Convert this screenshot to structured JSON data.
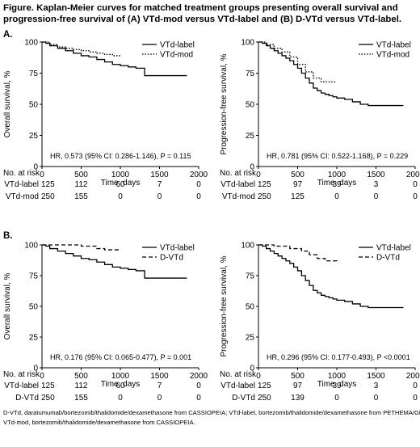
{
  "figure": {
    "title": "Figure. Kaplan-Meier curves for matched treatment groups presenting overall survival and progression-free survival of (A) VTd-mod versus VTd-label and (B) D-VTd versus VTd-label.",
    "footnotes": [
      "D-VTd, daratumumab/bortezomib/thalidomide/dexamethasone from CASSIOPEIA; VTd-label, bortezomib/thalidomide/dexamethasone from PETHEMA/GEM;",
      "VTd-mod, bortezomib/thalidomide/dexamethasone from CASSIOPEIA."
    ]
  },
  "panels": [
    {
      "label": "A."
    },
    {
      "label": "B."
    }
  ],
  "risk_header": "No. at risk",
  "chart_data": [
    {
      "type": "line",
      "title": "",
      "xlabel": "Time, days",
      "ylabel": "Overall survival, %",
      "xlim": [
        0,
        2000
      ],
      "ylim": [
        0,
        100
      ],
      "xticks": [
        0,
        500,
        1000,
        1500,
        2000
      ],
      "yticks": [
        0,
        25,
        50,
        75,
        100
      ],
      "legend_position": "top-right",
      "annotation": "HR, 0.573 (95% CI: 0.286-1.146), P = 0.115",
      "series": [
        {
          "name": "VTd-label",
          "style": "solid",
          "points": [
            [
              0,
              100
            ],
            [
              50,
              99
            ],
            [
              100,
              97
            ],
            [
              200,
              95
            ],
            [
              300,
              93
            ],
            [
              400,
              91
            ],
            [
              500,
              89
            ],
            [
              600,
              88
            ],
            [
              700,
              86
            ],
            [
              800,
              84
            ],
            [
              900,
              82
            ],
            [
              1000,
              81
            ],
            [
              1100,
              80
            ],
            [
              1200,
              79
            ],
            [
              1300,
              79
            ],
            [
              1310,
              73
            ],
            [
              1850,
              73
            ]
          ]
        },
        {
          "name": "VTd-mod",
          "style": "dotted",
          "points": [
            [
              0,
              100
            ],
            [
              100,
              98
            ],
            [
              200,
              96
            ],
            [
              300,
              95
            ],
            [
              400,
              94
            ],
            [
              500,
              93
            ],
            [
              600,
              92
            ],
            [
              700,
              91
            ],
            [
              800,
              90
            ],
            [
              900,
              89
            ],
            [
              1000,
              89
            ]
          ]
        }
      ],
      "risk_table": [
        {
          "name": "VTd-label",
          "values": [
            "125",
            "112",
            "60",
            "7",
            "0"
          ]
        },
        {
          "name": "VTd-mod",
          "values": [
            "250",
            "155",
            "0",
            "0",
            "0"
          ]
        }
      ]
    },
    {
      "type": "line",
      "title": "",
      "xlabel": "Time, days",
      "ylabel": "Progression-free survival, %",
      "xlim": [
        0,
        2000
      ],
      "ylim": [
        0,
        100
      ],
      "xticks": [
        0,
        500,
        1000,
        1500,
        2000
      ],
      "yticks": [
        0,
        25,
        50,
        75,
        100
      ],
      "legend_position": "top-right",
      "annotation": "HR, 0.781 (95% CI: 0.522-1.168), P = 0.229",
      "series": [
        {
          "name": "VTd-label",
          "style": "solid",
          "points": [
            [
              0,
              100
            ],
            [
              50,
              99
            ],
            [
              100,
              97
            ],
            [
              150,
              95
            ],
            [
              200,
              93
            ],
            [
              250,
              91
            ],
            [
              300,
              89
            ],
            [
              350,
              87
            ],
            [
              400,
              85
            ],
            [
              450,
              82
            ],
            [
              500,
              79
            ],
            [
              550,
              75
            ],
            [
              600,
              71
            ],
            [
              650,
              67
            ],
            [
              700,
              63
            ],
            [
              750,
              61
            ],
            [
              800,
              59
            ],
            [
              850,
              58
            ],
            [
              900,
              57
            ],
            [
              950,
              56
            ],
            [
              1000,
              55
            ],
            [
              1100,
              54
            ],
            [
              1200,
              52
            ],
            [
              1300,
              50
            ],
            [
              1400,
              49
            ],
            [
              1850,
              49
            ]
          ]
        },
        {
          "name": "VTd-mod",
          "style": "dotted",
          "points": [
            [
              0,
              100
            ],
            [
              100,
              98
            ],
            [
              200,
              95
            ],
            [
              300,
              92
            ],
            [
              400,
              88
            ],
            [
              500,
              82
            ],
            [
              600,
              76
            ],
            [
              700,
              71
            ],
            [
              800,
              68
            ],
            [
              900,
              68
            ],
            [
              1000,
              68
            ]
          ]
        }
      ],
      "risk_table": [
        {
          "name": "VTd-label",
          "values": [
            "125",
            "97",
            "39",
            "3",
            "0"
          ]
        },
        {
          "name": "VTd-mod",
          "values": [
            "250",
            "125",
            "0",
            "0",
            "0"
          ]
        }
      ]
    },
    {
      "type": "line",
      "title": "",
      "xlabel": "Time, days",
      "ylabel": "Overall survival, %",
      "xlim": [
        0,
        2000
      ],
      "ylim": [
        0,
        100
      ],
      "xticks": [
        0,
        500,
        1000,
        1500,
        2000
      ],
      "yticks": [
        0,
        25,
        50,
        75,
        100
      ],
      "legend_position": "top-right",
      "annotation": "HR, 0.176 (95% CI: 0.065-0.477), P = 0.001",
      "series": [
        {
          "name": "VTd-label",
          "style": "solid",
          "points": [
            [
              0,
              100
            ],
            [
              50,
              99
            ],
            [
              100,
              97
            ],
            [
              200,
              95
            ],
            [
              300,
              93
            ],
            [
              400,
              91
            ],
            [
              500,
              89
            ],
            [
              600,
              88
            ],
            [
              700,
              86
            ],
            [
              800,
              84
            ],
            [
              900,
              82
            ],
            [
              1000,
              81
            ],
            [
              1100,
              80
            ],
            [
              1200,
              79
            ],
            [
              1300,
              79
            ],
            [
              1310,
              73
            ],
            [
              1850,
              73
            ]
          ]
        },
        {
          "name": "D-VTd",
          "style": "dashed",
          "points": [
            [
              0,
              100
            ],
            [
              300,
              100
            ],
            [
              500,
              99
            ],
            [
              700,
              97
            ],
            [
              800,
              96
            ],
            [
              1000,
              96
            ]
          ]
        }
      ],
      "risk_table": [
        {
          "name": "VTd-label",
          "values": [
            "125",
            "112",
            "60",
            "7",
            "0"
          ]
        },
        {
          "name": "D-VTd",
          "values": [
            "250",
            "155",
            "0",
            "0",
            "0"
          ]
        }
      ]
    },
    {
      "type": "line",
      "title": "",
      "xlabel": "Time, days",
      "ylabel": "Progression-free survival, %",
      "xlim": [
        0,
        2000
      ],
      "ylim": [
        0,
        100
      ],
      "xticks": [
        0,
        500,
        1000,
        1500,
        2000
      ],
      "yticks": [
        0,
        25,
        50,
        75,
        100
      ],
      "legend_position": "top-right",
      "annotation": "HR, 0.296 (95% CI: 0.177-0.493), P <0.0001",
      "series": [
        {
          "name": "VTd-label",
          "style": "solid",
          "points": [
            [
              0,
              100
            ],
            [
              50,
              99
            ],
            [
              100,
              97
            ],
            [
              150,
              95
            ],
            [
              200,
              93
            ],
            [
              250,
              91
            ],
            [
              300,
              89
            ],
            [
              350,
              87
            ],
            [
              400,
              85
            ],
            [
              450,
              82
            ],
            [
              500,
              79
            ],
            [
              550,
              75
            ],
            [
              600,
              71
            ],
            [
              650,
              67
            ],
            [
              700,
              63
            ],
            [
              750,
              61
            ],
            [
              800,
              59
            ],
            [
              850,
              58
            ],
            [
              900,
              57
            ],
            [
              950,
              56
            ],
            [
              1000,
              55
            ],
            [
              1100,
              54
            ],
            [
              1200,
              52
            ],
            [
              1300,
              50
            ],
            [
              1400,
              49
            ],
            [
              1850,
              49
            ]
          ]
        },
        {
          "name": "D-VTd",
          "style": "dashed",
          "points": [
            [
              0,
              100
            ],
            [
              200,
              99
            ],
            [
              400,
              97
            ],
            [
              550,
              95
            ],
            [
              650,
              92
            ],
            [
              750,
              89
            ],
            [
              850,
              87
            ],
            [
              1000,
              86
            ]
          ]
        }
      ],
      "risk_table": [
        {
          "name": "VTd-label",
          "values": [
            "125",
            "97",
            "39",
            "3",
            "0"
          ]
        },
        {
          "name": "D-VTd",
          "values": [
            "250",
            "139",
            "0",
            "0",
            "0"
          ]
        }
      ]
    }
  ]
}
